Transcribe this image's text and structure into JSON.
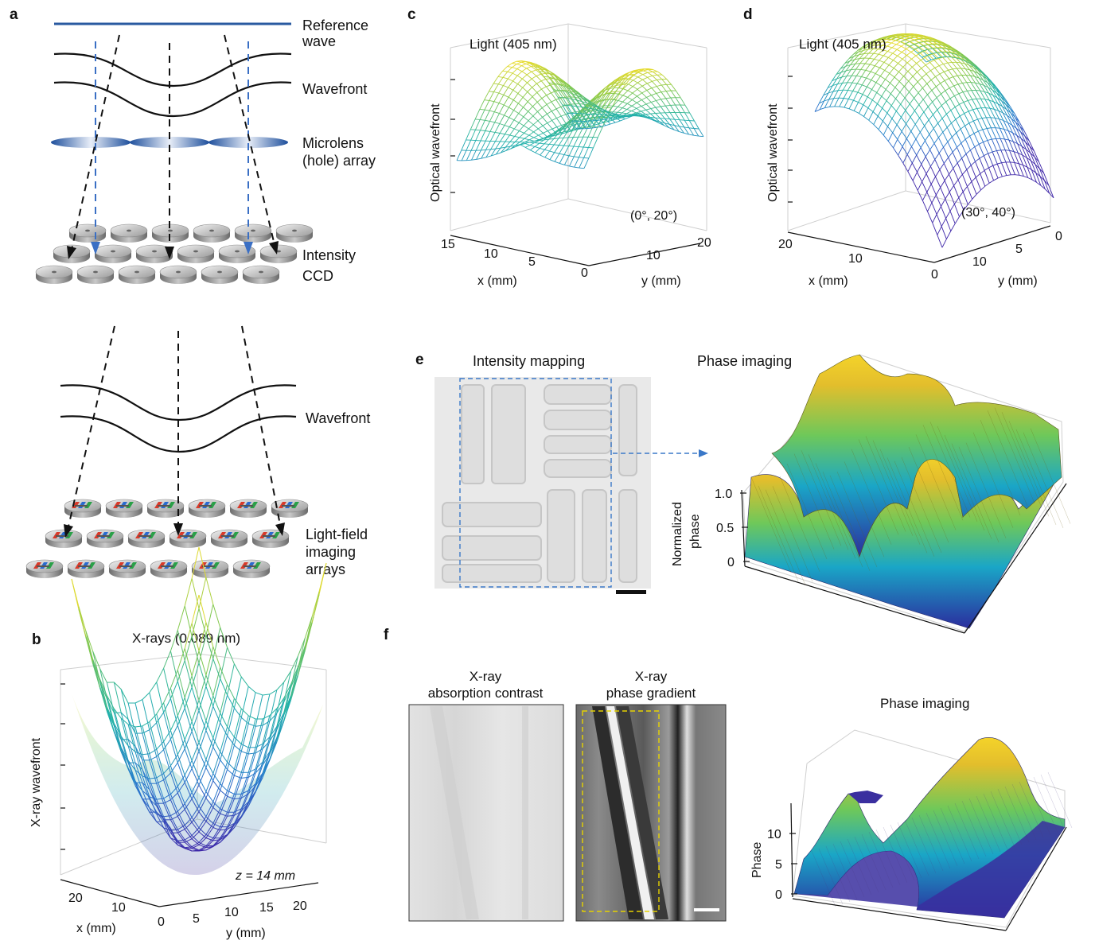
{
  "panels": {
    "a": {
      "letter": "a",
      "reference_wave": [
        "Reference",
        "wave"
      ],
      "wavefront_top": "Wavefront",
      "microlens": [
        "Microlens",
        "(hole) array"
      ],
      "intensity": "Intensity",
      "ccd": "CCD",
      "wavefront_bottom": "Wavefront",
      "lightfield": [
        "Light-field",
        "imaging",
        "arrays"
      ]
    },
    "b": {
      "letter": "b",
      "title": "X-rays (0.089 nm)",
      "zlabel": "X-ray wavefront",
      "annotation": "z = 14 mm",
      "x_label": "x (mm)",
      "y_label": "y (mm)",
      "x_ticks": [
        "20",
        "10",
        "0"
      ],
      "y_ticks": [
        "5",
        "10",
        "15",
        "20"
      ]
    },
    "c": {
      "letter": "c",
      "title": "Light (405 nm)",
      "zlabel": "Optical wavefront",
      "view": "(0°, 20°)",
      "x_label": "x (mm)",
      "y_label": "y (mm)",
      "x_ticks": [
        "15",
        "10",
        "5",
        "0"
      ],
      "y_ticks": [
        "10",
        "20"
      ]
    },
    "d": {
      "letter": "d",
      "title": "Light (405 nm)",
      "zlabel": "Optical wavefront",
      "view": "(30°, 40°)",
      "x_label": "x (mm)",
      "y_label": "y (mm)",
      "x_ticks": [
        "20",
        "10",
        "0"
      ],
      "y_ticks": [
        "10",
        "5",
        "0"
      ]
    },
    "e": {
      "letter": "e",
      "intensity_title": "Intensity mapping",
      "phase_title": "Phase imaging",
      "zlabel": [
        "Normalized",
        "phase"
      ],
      "z_ticks": [
        "1.0",
        "0.5",
        "0"
      ]
    },
    "f": {
      "letter": "f",
      "absorption_title": [
        "X-ray",
        "absorption contrast"
      ],
      "gradient_title": [
        "X-ray",
        "phase gradient"
      ],
      "phase_title": "Phase imaging",
      "zlabel": "Phase",
      "z_ticks": [
        "10",
        "5",
        "0"
      ]
    }
  },
  "colors": {
    "reference_wave": "#2a5aa0",
    "dashed_blue": "#3a6fc4",
    "dashed_black": "#111111",
    "yellow": "#f5e12a",
    "green": "#37b68a",
    "blue": "#3f2a9c",
    "dashed_box_e": "#3a78c8",
    "dashed_box_f": "#e6d200"
  },
  "icons": [
    "lens-icon",
    "sensor-disc-icon",
    "lightfield-sensor-icon"
  ]
}
